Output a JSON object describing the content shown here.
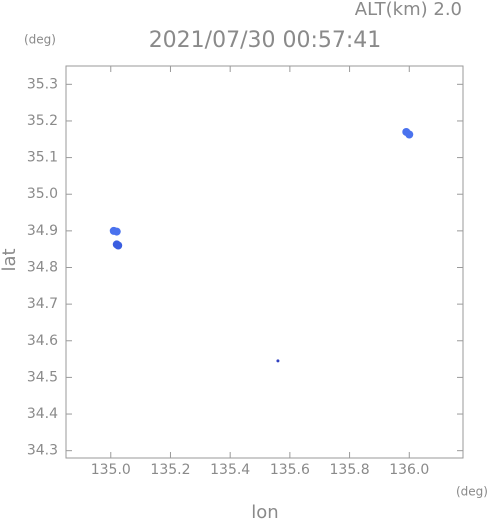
{
  "chart_data": {
    "type": "scatter",
    "header": "ALT(km) 2.0",
    "title": "2021/07/30 00:57:41",
    "y_unit": "(deg)",
    "x_unit": "(deg)",
    "y_label": "lat",
    "x_label": "lon",
    "x": [
      135.01,
      135.02,
      135.02,
      135.025,
      135.99,
      136.0,
      135.56
    ],
    "y": [
      34.9,
      34.898,
      34.863,
      34.86,
      35.17,
      35.163,
      34.545
    ],
    "colors": [
      "#4a72ee",
      "#4a72ee",
      "#3a5ee0",
      "#3a5ee0",
      "#4a72ee",
      "#4a72ee",
      "#3040c0"
    ],
    "xlim": [
      134.85,
      136.18
    ],
    "ylim": [
      34.28,
      35.35
    ],
    "xticks": [
      {
        "value": 135,
        "label": "135.0"
      },
      135.2,
      135.4,
      135.6,
      135.8,
      {
        "value": 136,
        "label": "136.0"
      }
    ],
    "yticks": [
      34.3,
      34.4,
      34.5,
      34.6,
      34.7,
      34.8,
      34.9,
      {
        "value": 35,
        "label": "35.0"
      },
      35.1,
      35.2,
      35.3
    ],
    "grid": false
  }
}
